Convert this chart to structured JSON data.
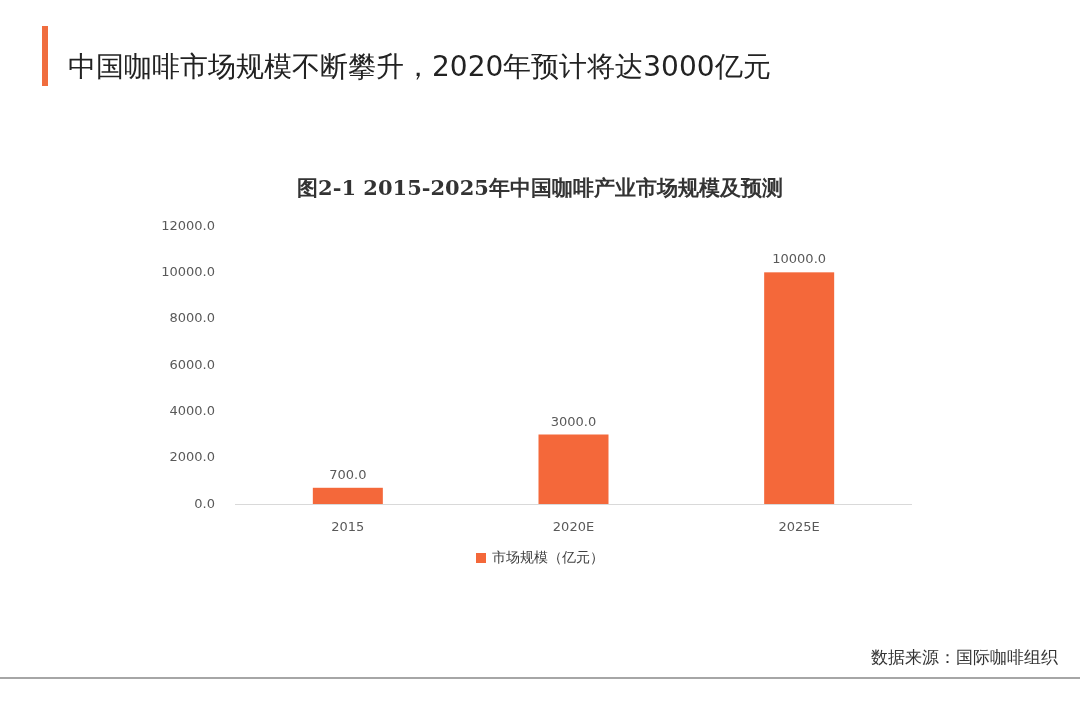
{
  "chart_data": {
    "type": "bar",
    "title": "中国咖啡市场规模不断攀升，2020年预计将达3000亿元",
    "subtitle": "图2-1 2015-2025年中国咖啡产业市场规模及预测",
    "categories": [
      "2015",
      "2020E",
      "2025E"
    ],
    "series": [
      {
        "name": "市场规模（亿元）",
        "color": "#f4683a",
        "values": [
          700,
          3000,
          10000
        ],
        "value_labels": [
          "700.0",
          "3000.0",
          "10000.0"
        ]
      }
    ],
    "ylim": [
      0,
      12000
    ],
    "yticks": [
      {
        "value": 0,
        "label": "0.0"
      },
      {
        "value": 2000,
        "label": "2000.0"
      },
      {
        "value": 4000,
        "label": "4000.0"
      },
      {
        "value": 6000,
        "label": "6000.0"
      },
      {
        "value": 8000,
        "label": "8000.0"
      },
      {
        "value": 10000,
        "label": "10000.0"
      },
      {
        "value": 12000,
        "label": "12000.0"
      }
    ],
    "legend": "bottom",
    "annotations": [
      "数据来源：国际咖啡组织"
    ]
  }
}
